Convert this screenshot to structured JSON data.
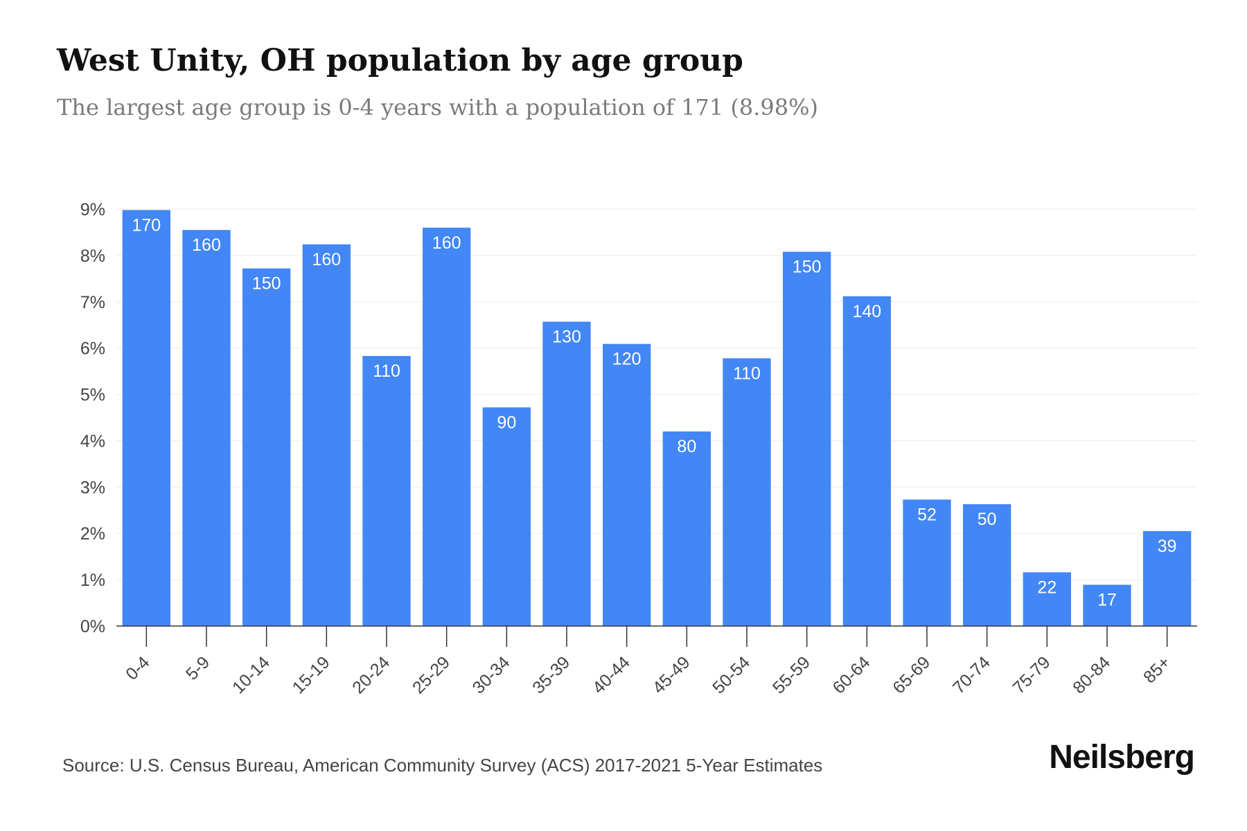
{
  "header": {
    "title": "West Unity, OH population by age group",
    "subtitle": "The largest age group is 0-4 years with a population of 171 (8.98%)"
  },
  "footer": {
    "source": "Source: U.S. Census Bureau, American Community Survey (ACS) 2017-2021 5-Year Estimates",
    "brand": "Neilsberg"
  },
  "colors": {
    "bar": "#4287f5",
    "grid": "#ebebeb",
    "axis": "#333333"
  },
  "chart_data": {
    "type": "bar",
    "title": "West Unity, OH population by age group",
    "subtitle": "The largest age group is 0-4 years with a population of 171 (8.98%)",
    "categories": [
      "0-4",
      "5-9",
      "10-14",
      "15-19",
      "20-24",
      "25-29",
      "30-34",
      "35-39",
      "40-44",
      "45-49",
      "50-54",
      "55-59",
      "60-64",
      "65-69",
      "70-74",
      "75-79",
      "80-84",
      "85+"
    ],
    "values": [
      8.98,
      8.55,
      7.72,
      8.24,
      5.83,
      8.6,
      4.72,
      6.57,
      6.09,
      4.2,
      5.78,
      8.08,
      7.12,
      2.73,
      2.63,
      1.16,
      0.89,
      2.05
    ],
    "data_labels": [
      "170",
      "160",
      "150",
      "160",
      "110",
      "160",
      "90",
      "130",
      "120",
      "80",
      "110",
      "150",
      "140",
      "52",
      "50",
      "22",
      "17",
      "39"
    ],
    "y_ticks": [
      "0%",
      "1%",
      "2%",
      "3%",
      "4%",
      "5%",
      "6%",
      "7%",
      "8%",
      "9%"
    ],
    "ylim": [
      0,
      9
    ],
    "y_unit": "%",
    "grid": true,
    "legend": "none"
  }
}
